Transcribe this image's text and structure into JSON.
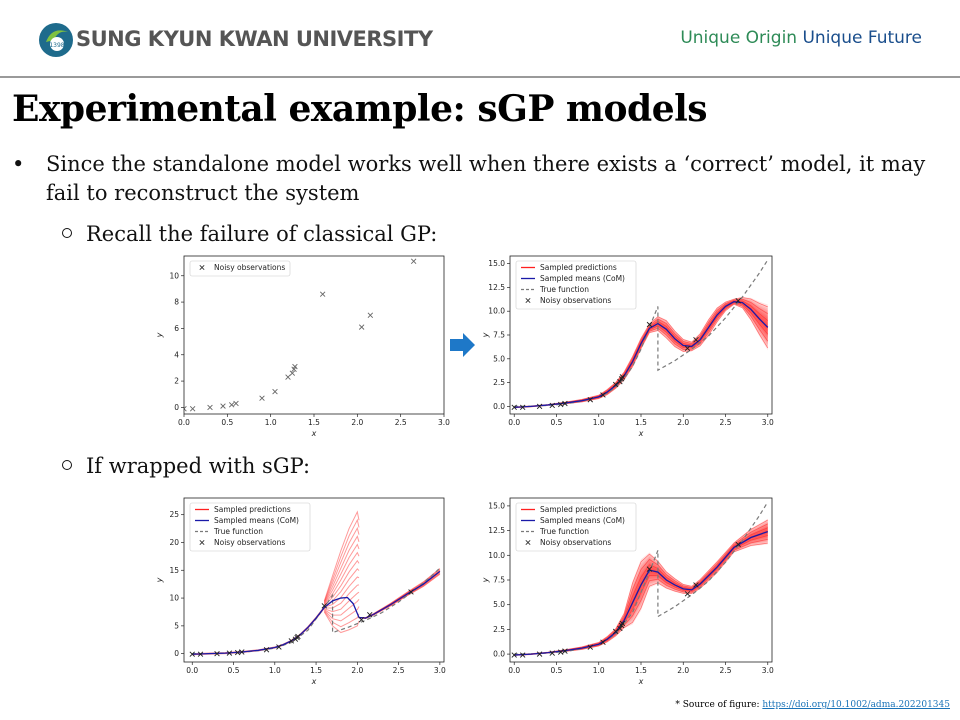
{
  "header": {
    "university_name": "SUNG KYUN KWAN UNIVERSITY",
    "logo_year": "1398",
    "slogan_part1": "Unique Origin",
    "slogan_part2": "Unique Future"
  },
  "slide": {
    "title": "Experimental example: sGP models",
    "bullet1": "Since the standalone model works well when there exists a ‘correct’ model, it may fail to reconstruct the system",
    "sub1": "Recall the failure of classical GP:",
    "sub2": "If wrapped with sGP:",
    "footer_prefix": "* Source of figure: ",
    "footer_link": "https://doi.org/10.1002/adma.202201345"
  },
  "colors": {
    "pred": "#ff2020",
    "mean": "#1a1aa8",
    "truth": "#7a7a7a",
    "obs": "#202020",
    "arrow": "#1e78c8"
  },
  "chart_data": [
    {
      "id": "c1",
      "type": "scatter",
      "xlabel": "x",
      "ylabel": "y",
      "xlim": [
        0,
        3.0
      ],
      "ylim": [
        -0.5,
        11.5
      ],
      "xticks": [
        0.0,
        0.5,
        1.0,
        1.5,
        2.0,
        2.5,
        3.0
      ],
      "yticks": [
        0,
        2,
        4,
        6,
        8,
        10
      ],
      "legend": [
        "Noisy observations"
      ],
      "observations": [
        [
          0.0,
          -0.1
        ],
        [
          0.1,
          -0.1
        ],
        [
          0.3,
          0.0
        ],
        [
          0.45,
          0.1
        ],
        [
          0.55,
          0.2
        ],
        [
          0.6,
          0.3
        ],
        [
          0.9,
          0.7
        ],
        [
          1.05,
          1.2
        ],
        [
          1.2,
          2.3
        ],
        [
          1.25,
          2.6
        ],
        [
          1.27,
          2.9
        ],
        [
          1.28,
          3.1
        ],
        [
          1.6,
          8.6
        ],
        [
          2.05,
          6.1
        ],
        [
          2.15,
          7.0
        ],
        [
          2.65,
          11.1
        ]
      ]
    },
    {
      "id": "c2",
      "type": "line",
      "xlabel": "x",
      "ylabel": "y",
      "xlim": [
        -0.05,
        3.05
      ],
      "ylim": [
        -0.8,
        15.8
      ],
      "xticks": [
        0.0,
        0.5,
        1.0,
        1.5,
        2.0,
        2.5,
        3.0
      ],
      "yticks": [
        0.0,
        2.5,
        5.0,
        7.5,
        10.0,
        12.5,
        15.0
      ],
      "legend": [
        "Sampled predictions",
        "Sampled means (CoM)",
        "True function",
        "Noisy observations"
      ],
      "observations": [
        [
          0.0,
          -0.1
        ],
        [
          0.1,
          -0.1
        ],
        [
          0.3,
          0.0
        ],
        [
          0.45,
          0.1
        ],
        [
          0.55,
          0.2
        ],
        [
          0.6,
          0.3
        ],
        [
          0.9,
          0.7
        ],
        [
          1.05,
          1.2
        ],
        [
          1.2,
          2.3
        ],
        [
          1.25,
          2.6
        ],
        [
          1.27,
          2.9
        ],
        [
          1.28,
          3.1
        ],
        [
          1.6,
          8.6
        ],
        [
          2.05,
          6.1
        ],
        [
          2.15,
          7.0
        ],
        [
          2.65,
          11.1
        ]
      ],
      "true_function": [
        [
          0,
          0
        ],
        [
          0.2,
          0.02
        ],
        [
          0.4,
          0.1
        ],
        [
          0.6,
          0.25
        ],
        [
          0.8,
          0.55
        ],
        [
          1.0,
          1.0
        ],
        [
          1.1,
          1.4
        ],
        [
          1.2,
          2.0
        ],
        [
          1.3,
          2.9
        ],
        [
          1.4,
          4.2
        ],
        [
          1.5,
          6.0
        ],
        [
          1.6,
          8.3
        ],
        [
          1.7,
          10.5
        ],
        [
          1.7,
          3.8
        ],
        [
          1.9,
          4.8
        ],
        [
          2.1,
          6.0
        ],
        [
          2.3,
          7.4
        ],
        [
          2.5,
          9.3
        ],
        [
          2.7,
          11.5
        ],
        [
          2.9,
          14.0
        ],
        [
          3.0,
          15.4
        ]
      ],
      "mean": [
        [
          0,
          -0.1
        ],
        [
          0.2,
          0.0
        ],
        [
          0.4,
          0.15
        ],
        [
          0.6,
          0.35
        ],
        [
          0.8,
          0.6
        ],
        [
          1.0,
          1.0
        ],
        [
          1.1,
          1.5
        ],
        [
          1.2,
          2.2
        ],
        [
          1.3,
          3.2
        ],
        [
          1.4,
          4.7
        ],
        [
          1.5,
          6.6
        ],
        [
          1.6,
          8.2
        ],
        [
          1.7,
          8.7
        ],
        [
          1.8,
          8.1
        ],
        [
          1.9,
          7.1
        ],
        [
          2.0,
          6.4
        ],
        [
          2.1,
          6.3
        ],
        [
          2.2,
          7.0
        ],
        [
          2.3,
          8.3
        ],
        [
          2.4,
          9.6
        ],
        [
          2.5,
          10.5
        ],
        [
          2.6,
          11.0
        ],
        [
          2.7,
          10.9
        ],
        [
          2.8,
          10.2
        ],
        [
          2.9,
          9.2
        ],
        [
          3.0,
          8.3
        ]
      ],
      "band": [
        0.05,
        0.05,
        0.05,
        0.1,
        0.15,
        0.2,
        0.3,
        0.35,
        0.45,
        0.6,
        0.6,
        0.5,
        0.8,
        1.0,
        0.9,
        0.7,
        0.5,
        0.7,
        0.9,
        0.8,
        0.5,
        0.3,
        0.6,
        1.2,
        1.8,
        2.4
      ]
    },
    {
      "id": "c3",
      "type": "line",
      "xlabel": "x",
      "ylabel": "y",
      "xlim": [
        -0.1,
        3.05
      ],
      "ylim": [
        -1.5,
        28.0
      ],
      "xticks": [
        0.0,
        0.5,
        1.0,
        1.5,
        2.0,
        2.5,
        3.0
      ],
      "yticks": [
        0,
        5,
        10,
        15,
        20,
        25
      ],
      "legend": [
        "Sampled predictions",
        "Sampled means (CoM)",
        "True function",
        "Noisy observations"
      ],
      "observations": [
        [
          0.0,
          -0.1
        ],
        [
          0.1,
          -0.1
        ],
        [
          0.3,
          0.0
        ],
        [
          0.45,
          0.1
        ],
        [
          0.55,
          0.2
        ],
        [
          0.6,
          0.3
        ],
        [
          0.9,
          0.7
        ],
        [
          1.05,
          1.2
        ],
        [
          1.2,
          2.3
        ],
        [
          1.25,
          2.6
        ],
        [
          1.27,
          2.9
        ],
        [
          1.28,
          3.1
        ],
        [
          1.6,
          8.6
        ],
        [
          2.05,
          6.1
        ],
        [
          2.15,
          7.0
        ],
        [
          2.65,
          11.1
        ]
      ],
      "true_function": [
        [
          0,
          0
        ],
        [
          0.2,
          0.02
        ],
        [
          0.4,
          0.1
        ],
        [
          0.6,
          0.25
        ],
        [
          0.8,
          0.55
        ],
        [
          1.0,
          1.0
        ],
        [
          1.2,
          2.0
        ],
        [
          1.4,
          4.2
        ],
        [
          1.6,
          8.3
        ],
        [
          1.7,
          10.5
        ],
        [
          1.7,
          3.8
        ],
        [
          1.9,
          4.8
        ],
        [
          2.1,
          6.0
        ],
        [
          2.3,
          7.4
        ],
        [
          2.5,
          9.3
        ],
        [
          2.7,
          11.5
        ],
        [
          2.9,
          14.0
        ],
        [
          3.0,
          15.4
        ]
      ],
      "mean": [
        [
          0,
          -0.1
        ],
        [
          0.2,
          0.0
        ],
        [
          0.4,
          0.1
        ],
        [
          0.6,
          0.3
        ],
        [
          0.8,
          0.6
        ],
        [
          1.0,
          1.1
        ],
        [
          1.1,
          1.6
        ],
        [
          1.2,
          2.3
        ],
        [
          1.3,
          3.3
        ],
        [
          1.4,
          4.7
        ],
        [
          1.5,
          6.4
        ],
        [
          1.6,
          8.3
        ],
        [
          1.7,
          9.5
        ],
        [
          1.8,
          10.0
        ],
        [
          1.88,
          10.1
        ],
        [
          1.95,
          9.0
        ],
        [
          2.02,
          6.5
        ],
        [
          2.1,
          6.4
        ],
        [
          2.2,
          7.1
        ],
        [
          2.4,
          8.8
        ],
        [
          2.6,
          10.7
        ],
        [
          2.8,
          12.5
        ],
        [
          3.0,
          14.8
        ]
      ],
      "band_upper": [
        [
          1.6,
          9.5
        ],
        [
          1.7,
          14.0
        ],
        [
          1.8,
          18.5
        ],
        [
          1.9,
          22.5
        ],
        [
          2.0,
          25.5
        ],
        [
          2.02,
          24.0
        ]
      ],
      "band_lower": [
        [
          1.6,
          7.5
        ],
        [
          1.65,
          5.0
        ],
        [
          1.7,
          3.8
        ],
        [
          1.8,
          4.3
        ],
        [
          1.9,
          5.0
        ],
        [
          2.02,
          5.9
        ]
      ]
    },
    {
      "id": "c4",
      "type": "line",
      "xlabel": "x",
      "ylabel": "y",
      "xlim": [
        -0.05,
        3.05
      ],
      "ylim": [
        -0.8,
        15.8
      ],
      "xticks": [
        0.0,
        0.5,
        1.0,
        1.5,
        2.0,
        2.5,
        3.0
      ],
      "yticks": [
        0.0,
        2.5,
        5.0,
        7.5,
        10.0,
        12.5,
        15.0
      ],
      "legend": [
        "Sampled predictions",
        "Sampled means (CoM)",
        "True function",
        "Noisy observations"
      ],
      "observations": [
        [
          0.0,
          -0.1
        ],
        [
          0.1,
          -0.1
        ],
        [
          0.3,
          0.0
        ],
        [
          0.45,
          0.1
        ],
        [
          0.55,
          0.2
        ],
        [
          0.6,
          0.3
        ],
        [
          0.9,
          0.7
        ],
        [
          1.05,
          1.2
        ],
        [
          1.2,
          2.3
        ],
        [
          1.25,
          2.6
        ],
        [
          1.27,
          2.9
        ],
        [
          1.28,
          3.1
        ],
        [
          1.6,
          8.6
        ],
        [
          2.05,
          6.1
        ],
        [
          2.15,
          7.0
        ],
        [
          2.65,
          11.1
        ]
      ],
      "true_function": [
        [
          0,
          0
        ],
        [
          0.2,
          0.02
        ],
        [
          0.4,
          0.1
        ],
        [
          0.6,
          0.25
        ],
        [
          0.8,
          0.55
        ],
        [
          1.0,
          1.0
        ],
        [
          1.2,
          2.0
        ],
        [
          1.4,
          4.2
        ],
        [
          1.6,
          8.3
        ],
        [
          1.7,
          10.5
        ],
        [
          1.7,
          3.8
        ],
        [
          1.9,
          4.8
        ],
        [
          2.1,
          6.0
        ],
        [
          2.3,
          7.4
        ],
        [
          2.5,
          9.3
        ],
        [
          2.7,
          11.5
        ],
        [
          2.9,
          14.0
        ],
        [
          3.0,
          15.4
        ]
      ],
      "mean": [
        [
          0,
          -0.1
        ],
        [
          0.2,
          0.0
        ],
        [
          0.4,
          0.15
        ],
        [
          0.6,
          0.35
        ],
        [
          0.8,
          0.6
        ],
        [
          1.0,
          1.0
        ],
        [
          1.1,
          1.5
        ],
        [
          1.2,
          2.2
        ],
        [
          1.3,
          3.4
        ],
        [
          1.4,
          5.2
        ],
        [
          1.5,
          7.0
        ],
        [
          1.6,
          8.5
        ],
        [
          1.7,
          8.3
        ],
        [
          1.8,
          7.5
        ],
        [
          1.9,
          7.0
        ],
        [
          2.0,
          6.6
        ],
        [
          2.1,
          6.5
        ],
        [
          2.2,
          7.1
        ],
        [
          2.4,
          8.8
        ],
        [
          2.6,
          10.8
        ],
        [
          2.8,
          11.8
        ],
        [
          3.0,
          12.4
        ]
      ],
      "band": [
        0.05,
        0.05,
        0.05,
        0.1,
        0.15,
        0.2,
        0.3,
        0.4,
        0.8,
        2.2,
        2.6,
        1.8,
        1.2,
        0.9,
        0.7,
        0.5,
        0.4,
        0.5,
        0.6,
        0.5,
        0.9,
        1.3
      ]
    }
  ]
}
